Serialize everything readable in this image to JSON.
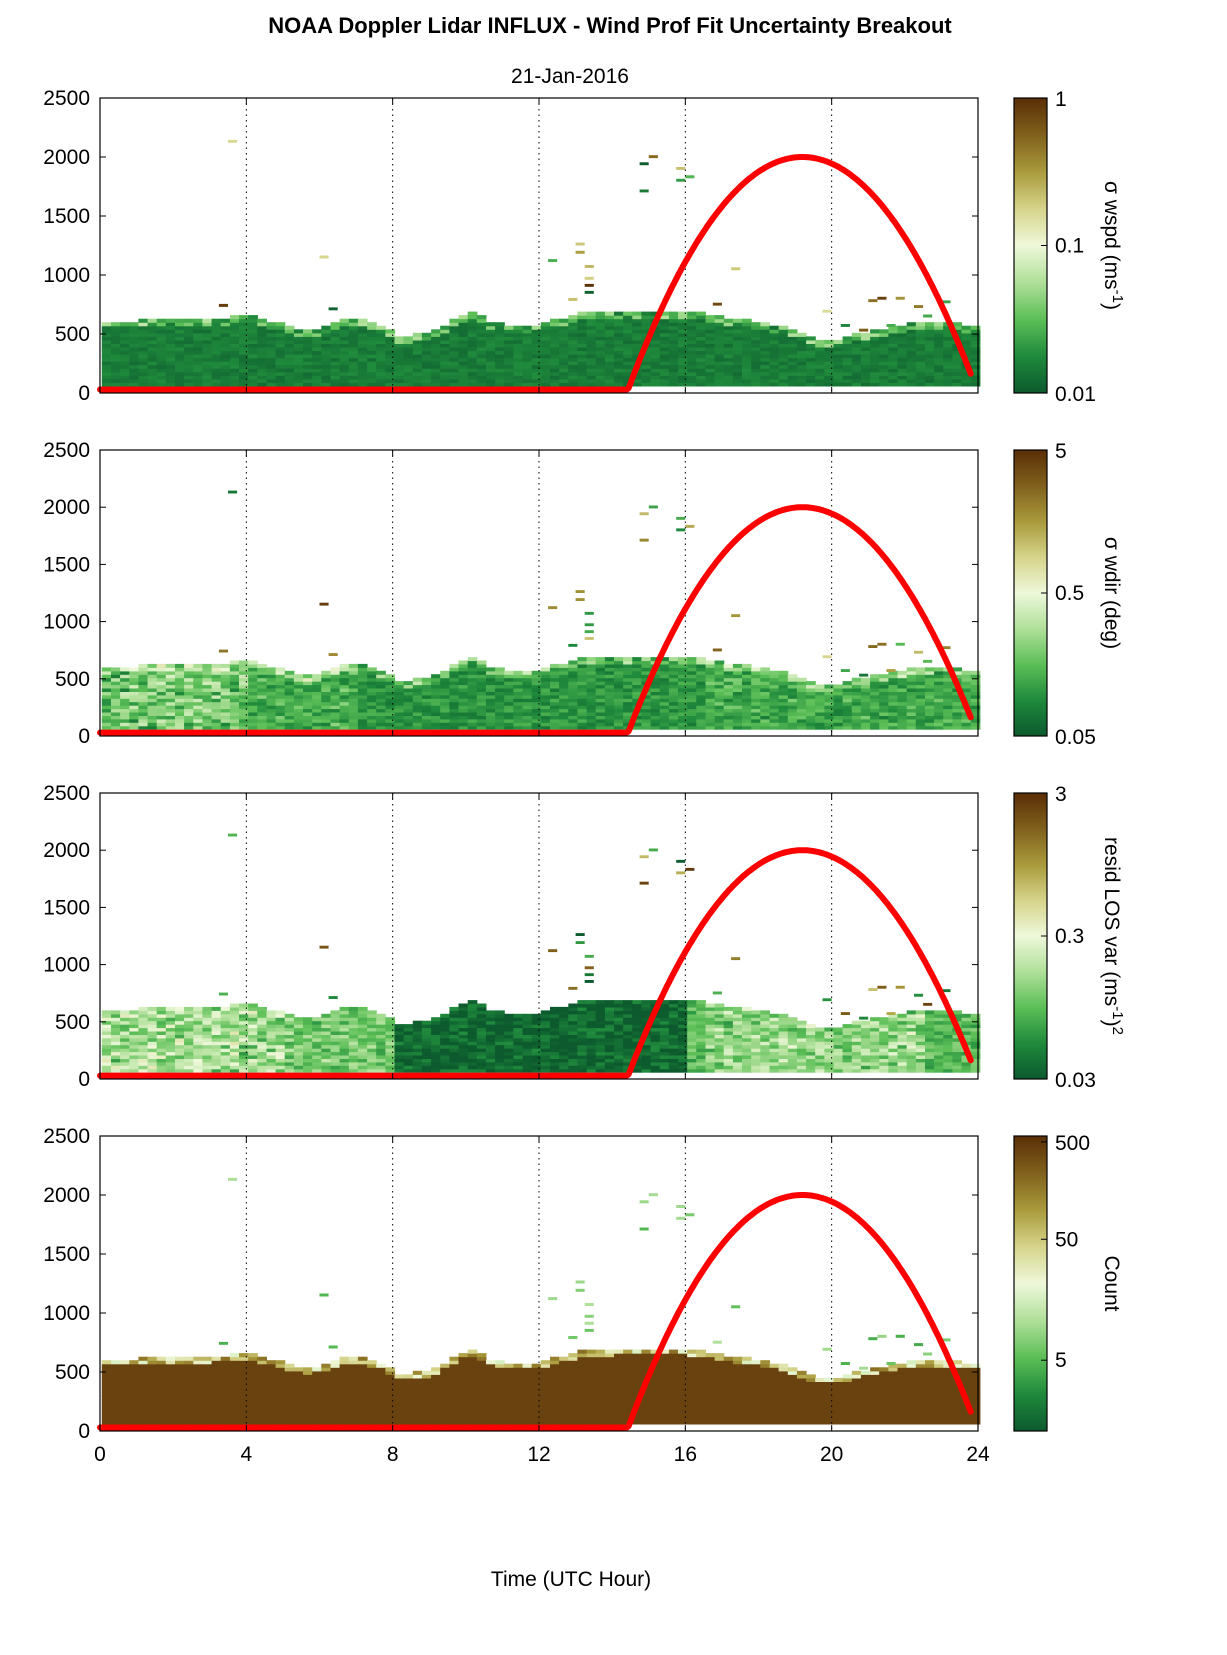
{
  "title": "NOAA Doppler Lidar INFLUX - Wind Prof Fit Uncertainty Breakout",
  "subtitle": "21-Jan-2016",
  "colors": {
    "sun_curve": "#ff0000",
    "colormap": [
      "#0c5a2e",
      "#1f8a3c",
      "#5cbf57",
      "#b0e09a",
      "#eef8da",
      "#d6d48a",
      "#a99a3c",
      "#80601c",
      "#5a2e06"
    ]
  },
  "chart_data": [
    {
      "type": "heatmap",
      "panel": "wspd",
      "xlim": [
        0,
        24
      ],
      "ylim": [
        0,
        2500
      ],
      "xticks": [
        0,
        4,
        8,
        12,
        16,
        20,
        24
      ],
      "yticks": [
        0,
        500,
        1000,
        1500,
        2000,
        2500
      ],
      "ytick_labels": [
        "0",
        "500",
        "1000",
        "1500",
        "2000",
        "2500"
      ],
      "grid": "vertical dotted",
      "colorbar": {
        "label": "σ wspd (ms",
        "label_sup": "-1",
        "label_end": ")",
        "scale": "log",
        "ticks": [
          "1",
          "0.1",
          "0.01"
        ],
        "tick_pos": [
          1,
          0.5,
          0
        ]
      },
      "dominant_level": 0.05,
      "sun_curve": {
        "rise_hour": 14.4,
        "peak_hour": 19.2,
        "peak_height": 2000,
        "end_hour": 23.8,
        "end_height": 200
      }
    },
    {
      "type": "heatmap",
      "panel": "wdir",
      "xlim": [
        0,
        24
      ],
      "ylim": [
        0,
        2500
      ],
      "xticks": [
        0,
        4,
        8,
        12,
        16,
        20,
        24
      ],
      "yticks": [
        0,
        500,
        1000,
        1500,
        2000,
        2500
      ],
      "ytick_labels": [
        "0",
        "500",
        "1000",
        "1500",
        "2000",
        "2500"
      ],
      "grid": "vertical dotted",
      "colorbar": {
        "label": "σ wdir (deg)",
        "label_sup": "",
        "label_end": "",
        "scale": "log",
        "ticks": [
          "5",
          "0.5",
          "0.05"
        ],
        "tick_pos": [
          1,
          0.5,
          0
        ]
      },
      "dominant_level": 0.2,
      "sun_curve": {
        "rise_hour": 14.4,
        "peak_hour": 19.2,
        "peak_height": 2000,
        "end_hour": 23.8,
        "end_height": 200
      }
    },
    {
      "type": "heatmap",
      "panel": "resid",
      "xlim": [
        0,
        24
      ],
      "ylim": [
        0,
        2500
      ],
      "xticks": [
        0,
        4,
        8,
        12,
        16,
        20,
        24
      ],
      "yticks": [
        0,
        500,
        1000,
        1500,
        2000,
        2500
      ],
      "ytick_labels": [
        "0",
        "500",
        "1000",
        "1500",
        "2000",
        "2500"
      ],
      "grid": "vertical dotted",
      "colorbar": {
        "label": "resid LOS var (ms",
        "label_sup": "-1",
        "label_end": ")",
        "label_sup2": "2",
        "scale": "log",
        "ticks": [
          "3",
          "0.3",
          "0.03"
        ],
        "tick_pos": [
          1,
          0.5,
          0
        ]
      },
      "dominant_level": 0.3,
      "sun_curve": {
        "rise_hour": 14.4,
        "peak_hour": 19.2,
        "peak_height": 2000,
        "end_hour": 23.8,
        "end_height": 200
      }
    },
    {
      "type": "heatmap",
      "panel": "count",
      "xlim": [
        0,
        24
      ],
      "ylim": [
        0,
        2500
      ],
      "xticks": [
        0,
        4,
        8,
        12,
        16,
        20,
        24
      ],
      "xtick_labels": [
        "0",
        "4",
        "8",
        "12",
        "16",
        "20",
        "24"
      ],
      "yticks": [
        0,
        500,
        1000,
        1500,
        2000,
        2500
      ],
      "ytick_labels": [
        "0",
        "500",
        "1000",
        "1500",
        "2000",
        "2500"
      ],
      "xlabel": "Time (UTC Hour)",
      "grid": "vertical dotted",
      "colorbar": {
        "label": "Count",
        "label_sup": "",
        "label_end": "",
        "scale": "log",
        "ticks": [
          "500",
          "50",
          "5"
        ],
        "tick_pos": [
          0.98,
          0.65,
          0.24
        ]
      },
      "dominant_level": 0.95,
      "sun_curve": {
        "rise_hour": 14.4,
        "peak_hour": 19.2,
        "peak_height": 2000,
        "end_hour": 23.8,
        "end_height": 200
      }
    }
  ],
  "boundary_layer_top": [
    [
      0,
      600
    ],
    [
      1,
      600
    ],
    [
      2,
      610
    ],
    [
      3,
      620
    ],
    [
      4,
      640
    ],
    [
      5,
      560
    ],
    [
      5.5,
      520
    ],
    [
      6,
      540
    ],
    [
      6.5,
      600
    ],
    [
      7,
      610
    ],
    [
      7.5,
      570
    ],
    [
      8,
      470
    ],
    [
      9,
      500
    ],
    [
      9.5,
      610
    ],
    [
      10,
      680
    ],
    [
      10.5,
      600
    ],
    [
      11,
      560
    ],
    [
      12,
      570
    ],
    [
      12.5,
      620
    ],
    [
      13,
      660
    ],
    [
      14,
      680
    ],
    [
      15,
      690
    ],
    [
      16,
      680
    ],
    [
      16.5,
      660
    ],
    [
      17,
      630
    ],
    [
      18,
      590
    ],
    [
      19,
      500
    ],
    [
      19.5,
      450
    ],
    [
      20,
      440
    ],
    [
      20.5,
      480
    ],
    [
      21,
      520
    ],
    [
      22,
      570
    ],
    [
      23,
      590
    ],
    [
      23.8,
      560
    ]
  ],
  "isolated_echoes": [
    [
      3.5,
      2120
    ],
    [
      3.25,
      730
    ],
    [
      6,
      1140
    ],
    [
      6.25,
      700
    ],
    [
      12.25,
      1110
    ],
    [
      13,
      1250
    ],
    [
      13,
      1180
    ],
    [
      13.25,
      1060
    ],
    [
      13.25,
      960
    ],
    [
      13.25,
      900
    ],
    [
      13.25,
      840
    ],
    [
      12.8,
      780
    ],
    [
      14.75,
      1930
    ],
    [
      15,
      1990
    ],
    [
      14.75,
      1700
    ],
    [
      15.75,
      1890
    ],
    [
      15.75,
      1790
    ],
    [
      16,
      1820
    ],
    [
      17.25,
      1040
    ],
    [
      16.75,
      740
    ],
    [
      19.75,
      680
    ],
    [
      20.25,
      560
    ],
    [
      21,
      770
    ],
    [
      21.25,
      790
    ],
    [
      21.75,
      790
    ],
    [
      22.25,
      720
    ],
    [
      22.5,
      640
    ],
    [
      23,
      760
    ],
    [
      20.75,
      520
    ],
    [
      21.5,
      560
    ]
  ]
}
